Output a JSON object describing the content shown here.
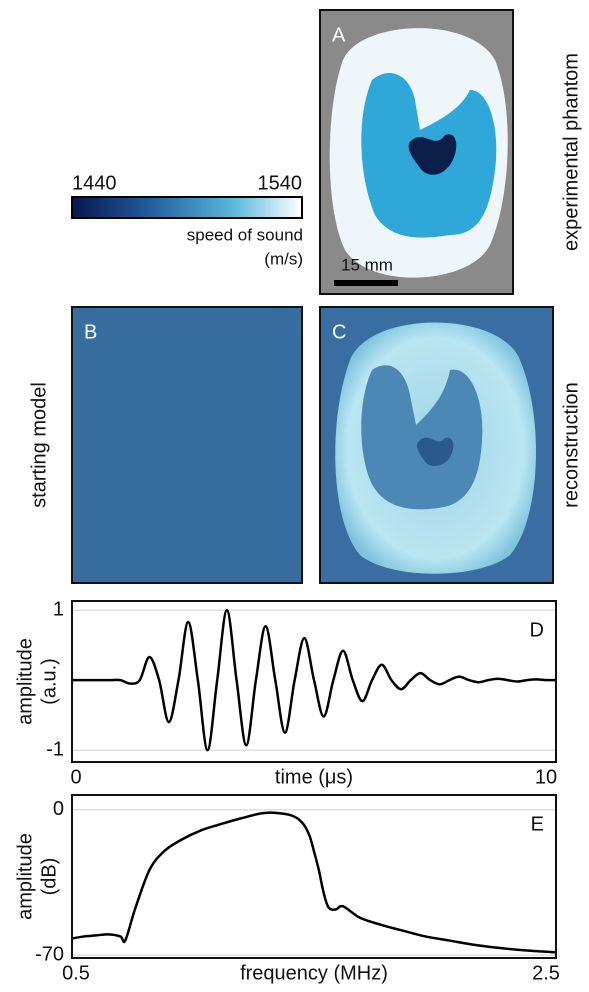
{
  "colorbar": {
    "min_label": "1440",
    "max_label": "1540",
    "label": "speed of sound",
    "unit": "(m/s)"
  },
  "panels": {
    "A": {
      "letter": "A",
      "title": "experimental phantom",
      "scale_bar": "15 mm"
    },
    "B": {
      "letter": "B",
      "title": "starting model"
    },
    "C": {
      "letter": "C",
      "title": "reconstruction"
    }
  },
  "chart_data": [
    {
      "type": "line",
      "panel": "D",
      "xlabel": "time (μs)",
      "ylabel": [
        "amplitude",
        "(a.u.)"
      ],
      "xlim": [
        0,
        10
      ],
      "xticks": [
        0,
        10
      ],
      "ylim": [
        -1.17,
        1.13
      ],
      "yticks": [
        -1,
        1
      ],
      "grid": true,
      "color": "#000000",
      "x": [
        0,
        0.2,
        0.4,
        0.6,
        0.8,
        1.0,
        1.2,
        1.4,
        1.6,
        1.8,
        2.0,
        2.2,
        2.4,
        2.6,
        2.8,
        3.0,
        3.2,
        3.4,
        3.6,
        3.8,
        4.0,
        4.2,
        4.4,
        4.6,
        4.8,
        5.0,
        5.2,
        5.4,
        5.6,
        5.8,
        6.0,
        6.2,
        6.4,
        6.6,
        6.8,
        7.0,
        7.2,
        7.4,
        7.6,
        7.8,
        8.0,
        8.2,
        8.4,
        8.6,
        8.8,
        9.0,
        9.2,
        9.4,
        9.6,
        9.8,
        10.0
      ],
      "values": [
        0,
        0,
        0,
        0,
        0,
        0,
        -0.05,
        0,
        0.33,
        0,
        -0.6,
        0,
        0.83,
        0,
        -1.0,
        0,
        1.0,
        0,
        -0.93,
        0,
        0.77,
        0,
        -0.75,
        0,
        0.6,
        0,
        -0.52,
        0,
        0.42,
        0,
        -0.3,
        0,
        0.22,
        0,
        -0.13,
        0,
        0.1,
        0,
        -0.06,
        0,
        0.05,
        0,
        -0.03,
        0,
        0.02,
        0,
        -0.02,
        0,
        0.01,
        0,
        0
      ]
    },
    {
      "type": "line",
      "panel": "E",
      "xlabel": "frequency (MHz)",
      "ylabel": [
        "amplitude",
        "(dB)"
      ],
      "xlim": [
        0.5,
        2.5
      ],
      "xticks": [
        0.5,
        2.5
      ],
      "ylim": [
        -71.4,
        7.2
      ],
      "yticks": [
        -70,
        0
      ],
      "grid": true,
      "color": "#000000",
      "x": [
        0.5,
        0.55,
        0.6,
        0.65,
        0.7,
        0.72,
        0.76,
        0.82,
        0.88,
        0.95,
        1.03,
        1.11,
        1.2,
        1.3,
        1.4,
        1.45,
        1.48,
        1.5,
        1.52,
        1.54,
        1.56,
        1.59,
        1.62,
        1.69,
        1.78,
        1.86,
        1.96,
        2.06,
        2.16,
        2.27,
        2.38,
        2.5
      ],
      "values": [
        -62,
        -61,
        -60.5,
        -60,
        -61,
        -63,
        -48,
        -29,
        -20,
        -14.5,
        -10,
        -7,
        -4,
        -1.4,
        -2.4,
        -6,
        -12,
        -20,
        -29,
        -40,
        -47,
        -48,
        -46.5,
        -52,
        -55.5,
        -58,
        -61,
        -63,
        -65,
        -66.6,
        -67.8,
        -68.7
      ]
    }
  ]
}
